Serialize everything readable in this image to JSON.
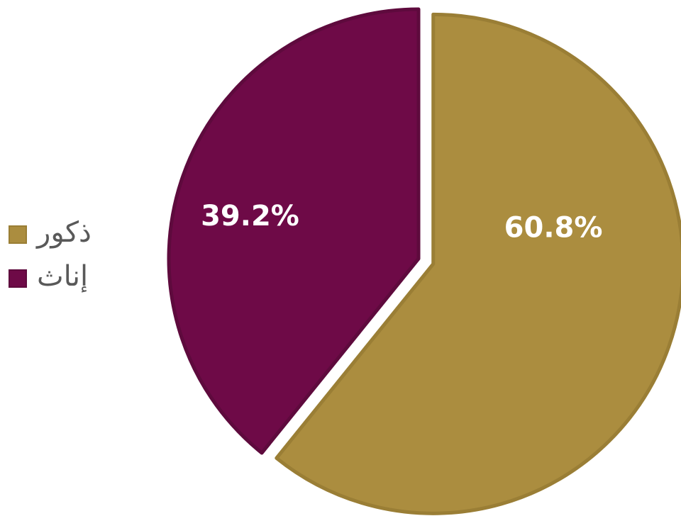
{
  "chart_data": {
    "type": "pie",
    "slices": [
      {
        "label": "ذكور",
        "value": 60.8,
        "display": "60.8%",
        "color": "#AB8D3F",
        "border": "#9A7E35",
        "exploded": true
      },
      {
        "label": "إناث",
        "value": 39.2,
        "display": "39.2%",
        "color": "#6E0A47",
        "border": "#5E0A3D",
        "exploded": false
      }
    ],
    "legend": {
      "placement": "left",
      "entries": [
        "ذكور",
        "إناث"
      ]
    },
    "start_angle": "top (12 o'clock), clockwise"
  }
}
